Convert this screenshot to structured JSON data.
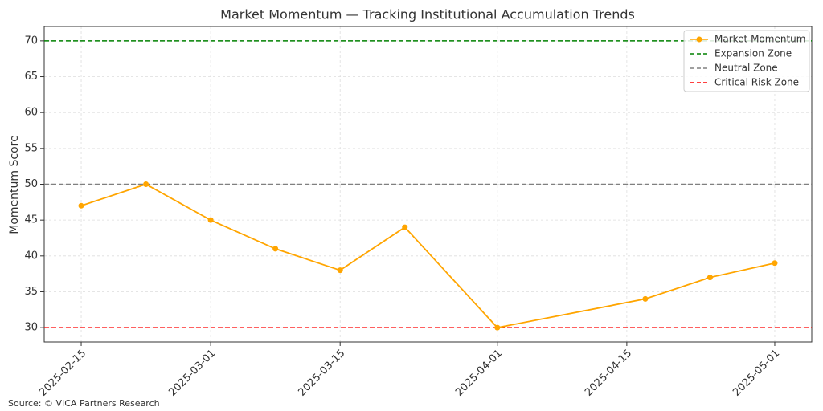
{
  "chart_data": {
    "type": "line",
    "title": "Market Momentum — Tracking Institutional Accumulation Trends",
    "y_label": "Momentum Score",
    "source": "Source: © VICA Partners Research",
    "x": [
      "2025-02-15",
      "2025-02-22",
      "2025-03-01",
      "2025-03-08",
      "2025-03-15",
      "2025-03-22",
      "2025-04-01",
      "2025-04-17",
      "2025-04-24",
      "2025-05-01"
    ],
    "series": [
      {
        "name": "Market Momentum",
        "color": "#ffa500",
        "values": [
          47,
          50,
          45,
          41,
          38,
          44,
          30,
          34,
          37,
          39
        ]
      }
    ],
    "reference_lines": [
      {
        "name": "Expansion Zone",
        "color": "#008000",
        "value": 70
      },
      {
        "name": "Neutral Zone",
        "color": "#808080",
        "value": 50
      },
      {
        "name": "Critical Risk Zone",
        "color": "#ff0000",
        "value": 30
      }
    ],
    "xlim": [
      "2025-02-11",
      "2025-05-05"
    ],
    "xticks": [
      "2025-02-15",
      "2025-03-01",
      "2025-03-15",
      "2025-04-01",
      "2025-04-15",
      "2025-05-01"
    ],
    "ylim": [
      28,
      72
    ],
    "yticks": [
      30,
      35,
      40,
      45,
      50,
      55,
      60,
      65,
      70
    ],
    "grid": true,
    "legend": "upper-right"
  }
}
